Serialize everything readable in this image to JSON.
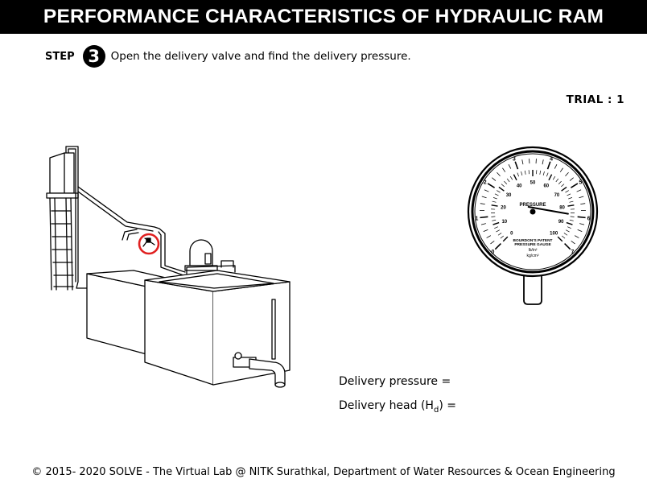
{
  "header": {
    "title": "PERFORMANCE CHARACTERISTICS OF HYDRAULIC RAM"
  },
  "instruction": {
    "step_label": "STEP",
    "step_number": "3",
    "text": "Open the delivery valve and find the delivery pressure."
  },
  "trial": {
    "label": "TRIAL : 1"
  },
  "gauge": {
    "outer_scale_values": [
      "0",
      "1",
      "2",
      "3",
      "4",
      "5",
      "6",
      "7"
    ],
    "inner_scale_values": [
      "0",
      "10",
      "20",
      "30",
      "40",
      "50",
      "60",
      "70",
      "80",
      "90",
      "100"
    ],
    "face_label": "PRESSURE",
    "brand_line1": "BOURDON'S PATENT",
    "brand_line2": "PRESSURE GAUGE",
    "unit_lb": "lb/in²",
    "unit_kg": "kg/cm²"
  },
  "results": {
    "delivery_pressure_label": "Delivery pressure =",
    "delivery_head_prefix": "Delivery head (H",
    "delivery_head_subscript": "d",
    "delivery_head_suffix": ") ="
  },
  "footer": {
    "text": "© 2015- 2020 SOLVE - The Virtual Lab @ NITK Surathkal, Department of Water Resources & Ocean Engineering"
  },
  "colors": {
    "highlight": "#e02020",
    "title_background": "#000000",
    "needle": "#000000"
  }
}
